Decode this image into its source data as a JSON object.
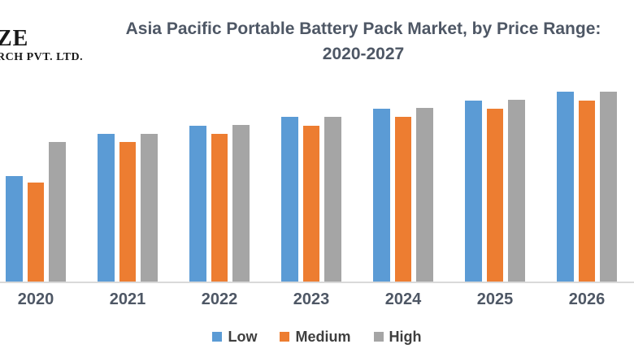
{
  "logo": {
    "line1": "ZE",
    "line2": "RCH PVT. LTD."
  },
  "title": {
    "line1": "Asia Pacific Portable Battery Pack Market, by Price Range:",
    "line2": "2020-2027"
  },
  "colors": {
    "low": "#5B9BD5",
    "medium": "#ED7D31",
    "high": "#A5A5A5",
    "axis_line": "#D9D9D9",
    "title_text": "#4E5765",
    "axis_label_text": "#4E5765",
    "legend_text": "#3F3F3F",
    "background": "#FFFFFF"
  },
  "chart_data": {
    "type": "bar",
    "title": "Asia Pacific Portable Battery Pack Market, by Price Range: 2020-2027",
    "categories": [
      "2020",
      "2021",
      "2022",
      "2023",
      "2024",
      "2025",
      "2026"
    ],
    "series": [
      {
        "name": "Low",
        "color_key": "low",
        "values": [
          130,
          182,
          192,
          203,
          213,
          223,
          234
        ]
      },
      {
        "name": "Medium",
        "color_key": "medium",
        "values": [
          122,
          172,
          182,
          192,
          203,
          213,
          223
        ]
      },
      {
        "name": "High",
        "color_key": "high",
        "values": [
          172,
          182,
          193,
          203,
          214,
          224,
          234
        ]
      }
    ],
    "value_units": "relative bar height (no y-axis scale shown in image)",
    "xlabel": "",
    "ylabel": "",
    "ylim": [
      0,
      260
    ],
    "grid": false,
    "legend_position": "bottom",
    "note_visible_range": "2027 group is cropped off the right edge of the image"
  },
  "legend": {
    "items": [
      {
        "label": "Low"
      },
      {
        "label": "Medium"
      },
      {
        "label": "High"
      }
    ]
  }
}
